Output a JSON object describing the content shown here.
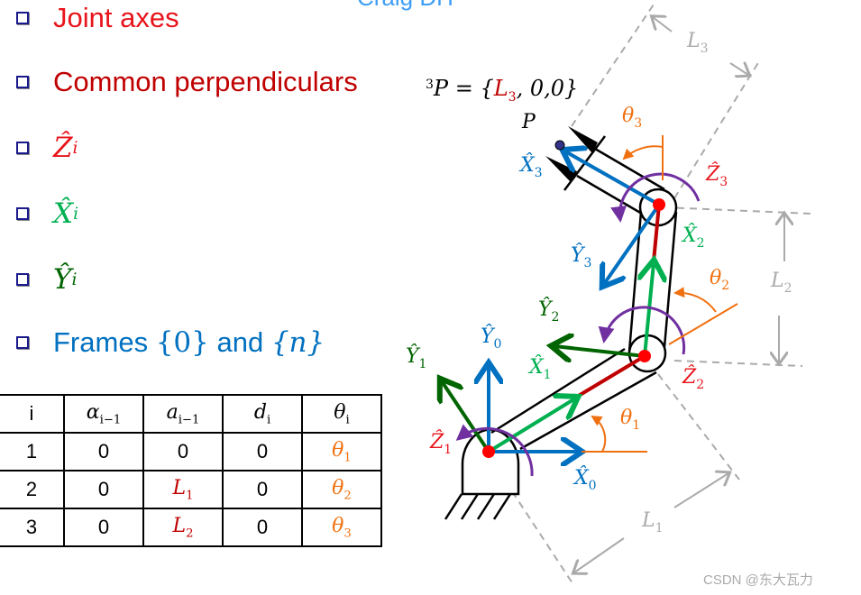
{
  "header_partial": "Craig DH",
  "bullets": [
    {
      "text": "Joint axes",
      "color": "#e8141b"
    },
    {
      "text": "Common perpendiculars",
      "color": "#c00000"
    },
    {
      "letter": "Ẑ",
      "sub": "i",
      "color": "#e8141b"
    },
    {
      "letter": "X̂",
      "sub": "i",
      "color": "#00b050"
    },
    {
      "letter": "Ŷ",
      "sub": "i",
      "color": "#006400"
    },
    {
      "text": "Frames ",
      "math1": "{0}",
      "mid": " and ",
      "math2": "{n}",
      "color": "#0070c0"
    }
  ],
  "table": {
    "headers": [
      {
        "t": "i"
      },
      {
        "t": "α",
        "s": "i−1"
      },
      {
        "t": "a",
        "s": "i−1"
      },
      {
        "t": "d",
        "s": "i"
      },
      {
        "t": "θ",
        "s": "i"
      }
    ],
    "rows": [
      [
        {
          "t": "1"
        },
        {
          "t": "0"
        },
        {
          "t": "0"
        },
        {
          "t": "0"
        },
        {
          "t": "θ",
          "s": "1",
          "c": "#f07010"
        }
      ],
      [
        {
          "t": "2"
        },
        {
          "t": "0"
        },
        {
          "t": "L",
          "s": "1",
          "c": "#c00000"
        },
        {
          "t": "0"
        },
        {
          "t": "θ",
          "s": "2",
          "c": "#f07010"
        }
      ],
      [
        {
          "t": "3"
        },
        {
          "t": "0"
        },
        {
          "t": "L",
          "s": "2",
          "c": "#c00000"
        },
        {
          "t": "0"
        },
        {
          "t": "θ",
          "s": "3",
          "c": "#f07010"
        }
      ]
    ]
  },
  "equation": {
    "pre": "P = {",
    "sup": "3",
    "l": "L",
    "lsub": "3",
    "post": ", 0,0}"
  },
  "point_label": "P",
  "labels": [
    {
      "t": "Ẑ",
      "s": "3",
      "c": "#e8141b"
    },
    {
      "t": "X̂",
      "s": "3",
      "c": "#0070c0"
    },
    {
      "t": "Ŷ",
      "s": "3",
      "c": "#0070c0"
    },
    {
      "t": "X̂",
      "s": "2",
      "c": "#00b050"
    },
    {
      "t": "θ",
      "s": "3",
      "c": "#f07010"
    },
    {
      "t": "θ",
      "s": "2",
      "c": "#f07010"
    },
    {
      "t": "L",
      "s": "2",
      "c": "#aaaaaa"
    },
    {
      "t": "L",
      "s": "3",
      "c": "#aaaaaa"
    },
    {
      "t": "Ŷ",
      "s": "2",
      "c": "#006400"
    },
    {
      "t": "Ŷ",
      "s": "0",
      "c": "#0070c0"
    },
    {
      "t": "Ŷ",
      "s": "1",
      "c": "#006400"
    },
    {
      "t": "X̂",
      "s": "1",
      "c": "#00b050"
    },
    {
      "t": "Ẑ",
      "s": "2",
      "c": "#e8141b"
    },
    {
      "t": "θ",
      "s": "1",
      "c": "#f07010"
    },
    {
      "t": "Ẑ",
      "s": "1",
      "c": "#e8141b"
    },
    {
      "t": "X̂",
      "s": "0",
      "c": "#0070c0"
    },
    {
      "t": "L",
      "s": "1",
      "c": "#aaaaaa"
    }
  ],
  "watermark": "CSDN @东大瓦力"
}
